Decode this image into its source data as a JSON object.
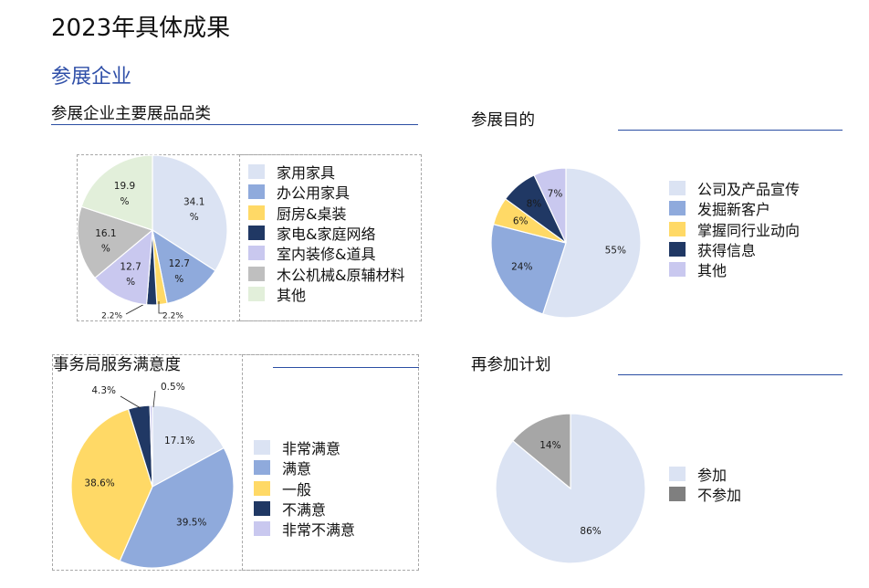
{
  "page": {
    "title": "2023年具体成果",
    "section": "参展企业"
  },
  "colors": {
    "light_blue": "#dbe3f3",
    "mid_blue": "#8faadc",
    "yellow": "#ffd966",
    "navy": "#203864",
    "lavender": "#c9c8ef",
    "gray": "#bfbfbf",
    "light_green": "#e2efda",
    "dark_gray": "#a6a6a6",
    "legend_dark_gray": "#7f7f7f"
  },
  "chart_data": [
    {
      "type": "pie",
      "title": "参展企业主要展品品类",
      "slices": [
        {
          "name": "家用家具",
          "value": 34.1,
          "label": "34.1%",
          "color": "#dbe3f3"
        },
        {
          "name": "办公用家具",
          "value": 12.7,
          "label": "12.7%",
          "color": "#8faadc"
        },
        {
          "name": "厨房&桌装",
          "value": 2.2,
          "label": "2.2%",
          "color": "#ffd966"
        },
        {
          "name": "家电&家庭网络",
          "value": 2.2,
          "label": "2.2%",
          "color": "#203864"
        },
        {
          "name": "室内装修&道具",
          "value": 12.7,
          "label": "12.7%",
          "color": "#c9c8ef"
        },
        {
          "name": "木公机械&原辅材料",
          "value": 16.1,
          "label": "16.1%",
          "color": "#bfbfbf"
        },
        {
          "name": "其他",
          "value": 19.9,
          "label": "19.9%",
          "color": "#e2efda"
        }
      ]
    },
    {
      "type": "pie",
      "title": "参展目的",
      "slices": [
        {
          "name": "公司及产品宣传",
          "value": 55,
          "label": "55%",
          "color": "#dbe3f3"
        },
        {
          "name": "发掘新客户",
          "value": 24,
          "label": "24%",
          "color": "#8faadc"
        },
        {
          "name": "掌握同行业动向",
          "value": 6,
          "label": "6%",
          "color": "#ffd966"
        },
        {
          "name": "获得信息",
          "value": 8,
          "label": "8%",
          "color": "#203864"
        },
        {
          "name": "其他",
          "value": 7,
          "label": "7%",
          "color": "#c9c8ef"
        }
      ]
    },
    {
      "type": "pie",
      "title": "事务局服务满意度",
      "slices": [
        {
          "name": "非常满意",
          "value": 17.1,
          "label": "17.1%",
          "color": "#dbe3f3"
        },
        {
          "name": "满意",
          "value": 39.5,
          "label": "39.5%",
          "color": "#8faadc"
        },
        {
          "name": "一般",
          "value": 38.6,
          "label": "38.6%",
          "color": "#ffd966"
        },
        {
          "name": "不满意",
          "value": 4.3,
          "label": "4.3%",
          "color": "#203864"
        },
        {
          "name": "非常不满意",
          "value": 0.5,
          "label": "0.5%",
          "color": "#c9c8ef"
        }
      ]
    },
    {
      "type": "pie",
      "title": "再参加计划",
      "slices": [
        {
          "name": "参加",
          "value": 86,
          "label": "86%",
          "color": "#dbe3f3"
        },
        {
          "name": "不参加",
          "value": 14,
          "label": "14%",
          "color": "#a6a6a6",
          "legend_color": "#7f7f7f"
        }
      ]
    }
  ]
}
